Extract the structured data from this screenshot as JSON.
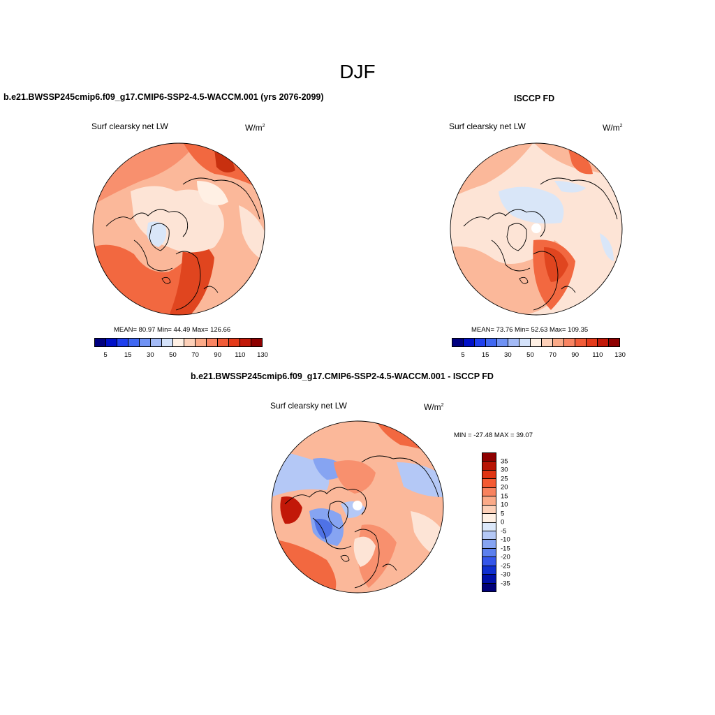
{
  "title": "DJF",
  "panels": {
    "model": {
      "title": "b.e21.BWSSP245cmip6.f09_g17.CMIP6-SSP2-4.5-WACCM.001 (yrs 2076-2099)",
      "variable": "Surf clearsky net LW",
      "units": "W/m",
      "units_exp": "2",
      "stats": "MEAN=  80.97  Min=  44.49  Max= 126.66",
      "mean": 80.97,
      "min": 44.49,
      "max": 126.66
    },
    "obs": {
      "title": "ISCCP FD",
      "variable": "Surf clearsky net LW",
      "units": "W/m",
      "units_exp": "2",
      "stats": "MEAN=  73.76  Min=  52.63  Max= 109.35",
      "mean": 73.76,
      "min": 52.63,
      "max": 109.35
    },
    "diff": {
      "title": "b.e21.BWSSP245cmip6.f09_g17.CMIP6-SSP2-4.5-WACCM.001 - ISCCP FD",
      "variable": "Surf clearsky net LW",
      "units": "W/m",
      "units_exp": "2",
      "stats": "MIN = -27.48 MAX =  39.07",
      "min": -27.48,
      "max": 39.07
    }
  },
  "colorbars": {
    "abs": {
      "tick_labels": [
        "5",
        "15",
        "30",
        "50",
        "70",
        "90",
        "110",
        "130"
      ],
      "colors": [
        "#000080",
        "#0010c8",
        "#2040ee",
        "#4068f2",
        "#6f92f4",
        "#a3baf6",
        "#d4e2fa",
        "#fff0e4",
        "#fdd0b8",
        "#fbaa88",
        "#f98462",
        "#f25c38",
        "#e43a1a",
        "#c21808",
        "#8e0000"
      ]
    },
    "diff": {
      "tick_labels": [
        "35",
        "30",
        "25",
        "20",
        "15",
        "10",
        "5",
        "0",
        "-5",
        "-10",
        "-15",
        "-20",
        "-25",
        "-30",
        "-35"
      ],
      "colors": [
        "#8e0000",
        "#b81404",
        "#e03412",
        "#f45a32",
        "#f8825e",
        "#fbaa88",
        "#fdd0b8",
        "#fff0e4",
        "#dce8fa",
        "#b4c8f6",
        "#86a4f2",
        "#5c80ee",
        "#3456ea",
        "#0f2fd0",
        "#0010a8",
        "#000078"
      ]
    }
  },
  "map_palette": {
    "ocean_light": "#fde4d6",
    "mid": "#fbb89a",
    "warm": "#f8906e",
    "hot": "#f26840",
    "very_hot": "#e0451f",
    "cool": "#d9e6f8",
    "blue": "#9fb6f2",
    "deep_blue": "#4f72e6",
    "coast": "#000000"
  }
}
